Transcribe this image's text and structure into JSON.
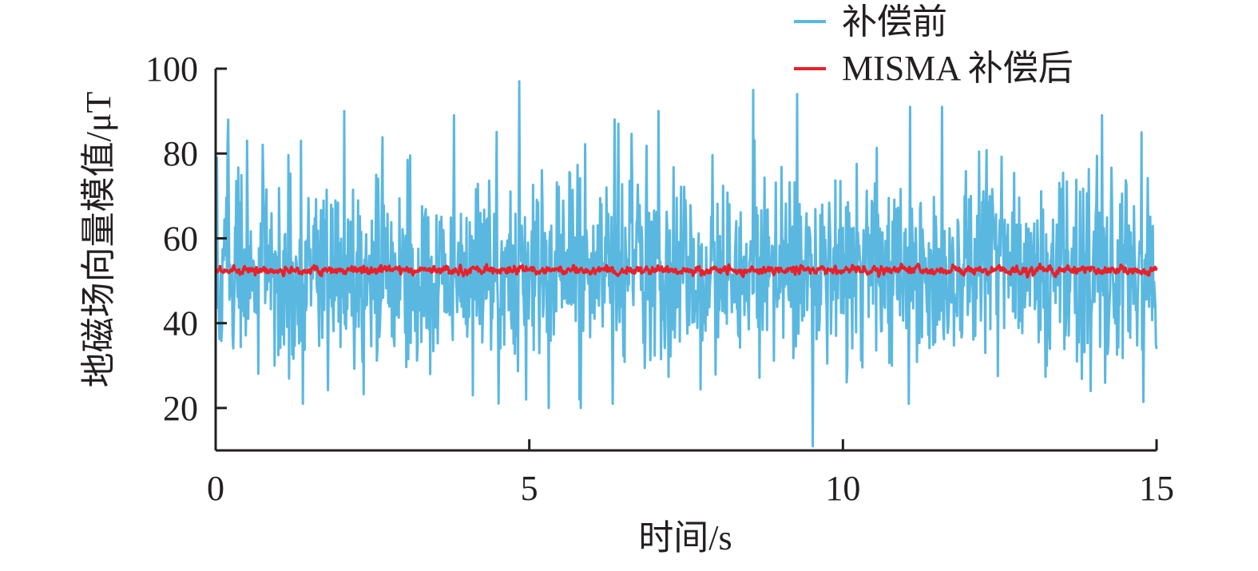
{
  "chart_data": {
    "type": "line",
    "title": "",
    "xlabel": "时间/s",
    "ylabel": "地磁场向量模值/μT",
    "xlim": [
      0,
      15
    ],
    "ylim": [
      10,
      100
    ],
    "x_ticks": [
      0,
      5,
      10,
      15
    ],
    "y_ticks": [
      20,
      40,
      60,
      80,
      100
    ],
    "x_tick_labels": [
      "0",
      "5",
      "10",
      "15"
    ],
    "y_tick_labels": [
      "20",
      "40",
      "60",
      "80",
      "100"
    ],
    "grid": false,
    "legend_position": "top-right",
    "series": [
      {
        "name": "补偿前",
        "color": "#5ab8e0",
        "sample_interval": 0.01,
        "x_start": 0,
        "x_end": 15,
        "mean": 52.5,
        "min": 11,
        "max": 97,
        "peaks": [
          {
            "x": 0.02,
            "y": 79
          },
          {
            "x": 0.07,
            "y": 38
          },
          {
            "x": 0.2,
            "y": 88
          },
          {
            "x": 0.5,
            "y": 83
          },
          {
            "x": 0.94,
            "y": 30
          },
          {
            "x": 1.39,
            "y": 21
          },
          {
            "x": 2.05,
            "y": 90
          },
          {
            "x": 3.42,
            "y": 91
          },
          {
            "x": 3.42,
            "y": 28
          },
          {
            "x": 3.8,
            "y": 89
          },
          {
            "x": 4.1,
            "y": 23
          },
          {
            "x": 4.84,
            "y": 97
          },
          {
            "x": 4.95,
            "y": 22
          },
          {
            "x": 5.8,
            "y": 22
          },
          {
            "x": 6.42,
            "y": 87
          },
          {
            "x": 7.06,
            "y": 90
          },
          {
            "x": 8.57,
            "y": 95
          },
          {
            "x": 9.27,
            "y": 94
          },
          {
            "x": 9.52,
            "y": 11
          },
          {
            "x": 11.07,
            "y": 91
          },
          {
            "x": 11.05,
            "y": 21
          },
          {
            "x": 11.58,
            "y": 91
          },
          {
            "x": 13.95,
            "y": 24
          },
          {
            "x": 14.13,
            "y": 89
          },
          {
            "x": 14.76,
            "y": 85
          },
          {
            "x": 14.99,
            "y": 35
          }
        ]
      },
      {
        "name": "MISMA 补偿后",
        "color": "#e8202a",
        "sample_interval": 0.01,
        "x_start": 0,
        "x_end": 15,
        "mean": 52.5,
        "min": 50.5,
        "max": 54.5
      }
    ]
  }
}
